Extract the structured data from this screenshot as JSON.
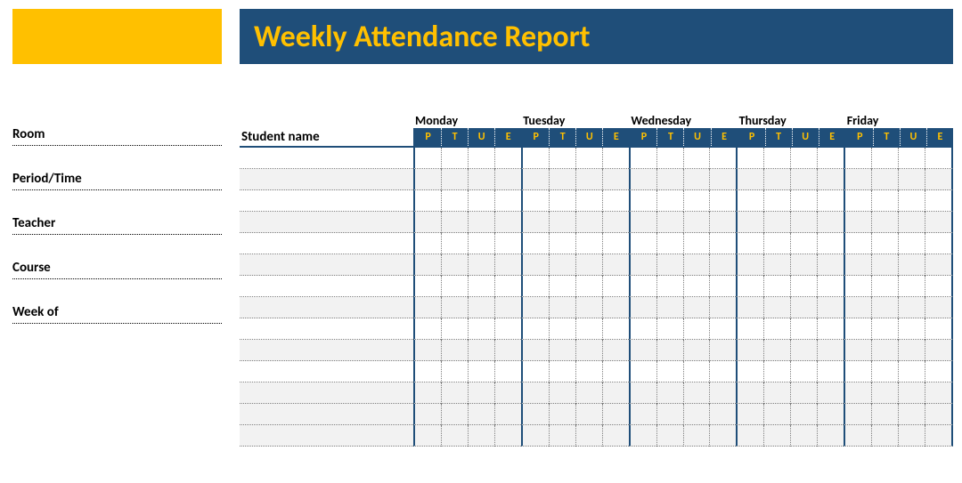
{
  "title": "Weekly Attendance Report",
  "colors": {
    "accent_gold": "#ffc000",
    "header_blue": "#1f4e79",
    "row_shade": "#f2f2f2",
    "row_shade_strong": "#e8e8e8",
    "dotted_border": "#808080",
    "background": "#ffffff"
  },
  "typography": {
    "title_fontsize": 34,
    "label_fontsize": 15,
    "day_fontsize": 14,
    "code_fontsize": 12
  },
  "meta_labels": {
    "room": "Room",
    "period_time": "Period/Time",
    "teacher": "Teacher",
    "course": "Course",
    "week_of": "Week of"
  },
  "grid": {
    "student_name_header": "Student name",
    "days": [
      "Monday",
      "Tuesday",
      "Wednesday",
      "Thursday",
      "Friday"
    ],
    "codes": [
      "P",
      "T",
      "U",
      "E"
    ],
    "num_data_rows": 14,
    "shaded_rows_light": [
      1,
      3,
      5,
      7,
      9,
      11,
      12,
      13
    ],
    "shaded_rows_strong": []
  }
}
